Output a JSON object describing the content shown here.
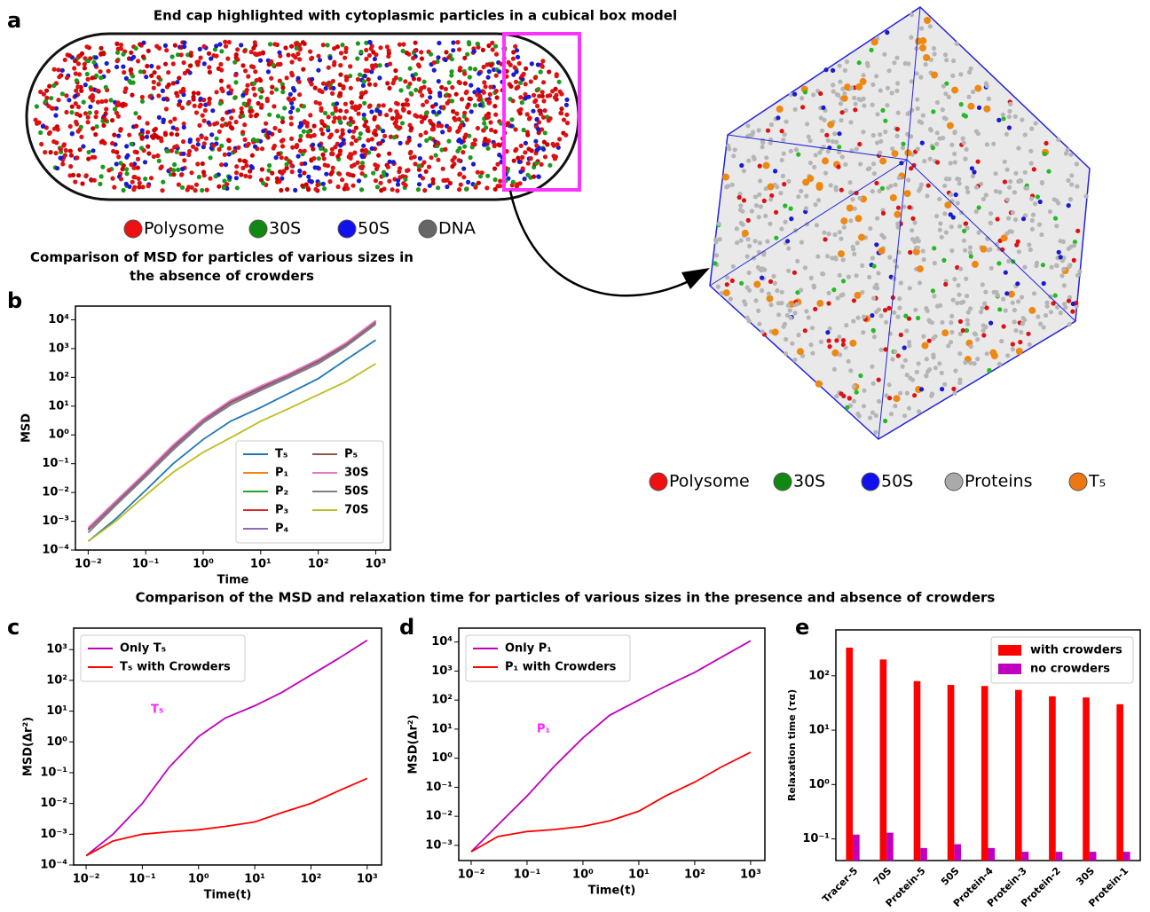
{
  "figure": {
    "title": "End cap highlighted with cytoplasmic particles in a cubical box model",
    "panel_labels": [
      "a",
      "b",
      "c",
      "d",
      "e"
    ],
    "cell_legend": [
      {
        "label": "Polysome",
        "color": "#ee1111"
      },
      {
        "label": "30S",
        "color": "#118811"
      },
      {
        "label": "50S",
        "color": "#1111ee"
      },
      {
        "label": "DNA",
        "color": "#666666"
      }
    ],
    "box_legend": [
      {
        "label": "Polysome",
        "color": "#ee1111"
      },
      {
        "label": "30S",
        "color": "#118811"
      },
      {
        "label": "50S",
        "color": "#1111ee"
      },
      {
        "label": "Proteins",
        "color": "#aaaaaa"
      },
      {
        "label": "T₅",
        "color": "#ee7711"
      }
    ],
    "section_title": "Comparison of the MSD and relaxation time for particles of various sizes in the presence and absence of crowders"
  },
  "chart_data": [
    {
      "type": "line",
      "title": "Comparison of MSD for particles of various sizes in the absence of crowders",
      "x_label": "Time",
      "y_label": "MSD",
      "log_x": true,
      "log_y": true,
      "legend": "lower right",
      "legend_columns": 2,
      "x": [
        0.01,
        0.03,
        0.1,
        0.3,
        1,
        3,
        10,
        30,
        100,
        300,
        1000
      ],
      "xlim": [
        0.006,
        1800
      ],
      "ylim": [
        0.0001,
        30000
      ],
      "xticks": [
        {
          "value": 0.01,
          "label": "10⁻²"
        },
        {
          "value": 0.1,
          "label": "10⁻¹"
        },
        {
          "value": 1,
          "label": "10⁰"
        },
        {
          "value": 10,
          "label": "10¹"
        },
        {
          "value": 100,
          "label": "10²"
        },
        {
          "value": 1000,
          "label": "10³"
        }
      ],
      "yticks": [
        {
          "value": 0.0001,
          "label": "10⁻⁴"
        },
        {
          "value": 0.001,
          "label": "10⁻³"
        },
        {
          "value": 0.01,
          "label": "10⁻²"
        },
        {
          "value": 0.1,
          "label": "10⁻¹"
        },
        {
          "value": 1,
          "label": "10⁰"
        },
        {
          "value": 10,
          "label": "10¹"
        },
        {
          "value": 100,
          "label": "10²"
        },
        {
          "value": 1000,
          "label": "10³"
        },
        {
          "value": 10000,
          "label": "10⁴"
        }
      ],
      "series": [
        {
          "name": "T₅",
          "color": "#1f77b4",
          "values": [
            0.0002,
            0.0012,
            0.012,
            0.1,
            0.7,
            3,
            9,
            27,
            90,
            400,
            2000
          ]
        },
        {
          "name": "P₁",
          "color": "#ff7f0e",
          "values": [
            0.0005,
            0.004,
            0.04,
            0.35,
            3,
            13,
            40,
            110,
            350,
            1300,
            8000
          ]
        },
        {
          "name": "P₂",
          "color": "#2ca02c",
          "values": [
            0.0005,
            0.004,
            0.04,
            0.35,
            3,
            13,
            40,
            110,
            350,
            1300,
            8000
          ]
        },
        {
          "name": "P₃",
          "color": "#d62728",
          "values": [
            0.0005,
            0.004,
            0.04,
            0.35,
            3,
            13,
            40,
            110,
            350,
            1300,
            8000
          ]
        },
        {
          "name": "P₄",
          "color": "#9467bd",
          "values": [
            0.0005,
            0.004,
            0.04,
            0.35,
            3,
            13,
            40,
            110,
            350,
            1300,
            8000
          ]
        },
        {
          "name": "P₅",
          "color": "#8c564b",
          "values": [
            0.00055,
            0.0045,
            0.045,
            0.4,
            3.3,
            14,
            44,
            120,
            380,
            1400,
            8800
          ]
        },
        {
          "name": "30S",
          "color": "#e377c2",
          "values": [
            0.0006,
            0.005,
            0.05,
            0.45,
            3.6,
            16,
            50,
            130,
            420,
            1550,
            9500
          ]
        },
        {
          "name": "50S",
          "color": "#7f7f7f",
          "values": [
            0.0004,
            0.0035,
            0.035,
            0.3,
            2.6,
            11,
            35,
            95,
            300,
            1150,
            7000
          ]
        },
        {
          "name": "70S",
          "color": "#bcbd22",
          "values": [
            0.0002,
            0.001,
            0.008,
            0.05,
            0.25,
            0.8,
            3,
            8,
            25,
            70,
            300
          ]
        }
      ]
    },
    {
      "type": "line",
      "x_label": "Time(t)",
      "y_label": "MSD(Δr²)",
      "log_x": true,
      "log_y": true,
      "legend": "upper left",
      "legend_columns": 1,
      "annotation": {
        "text": "T₅",
        "color": "#ff22ff"
      },
      "x": [
        0.01,
        0.03,
        0.1,
        0.3,
        1,
        3,
        10,
        30,
        100,
        300,
        1000
      ],
      "xlim": [
        0.006,
        1800
      ],
      "ylim": [
        0.0001,
        5000
      ],
      "xticks": [
        {
          "value": 0.01,
          "label": "10⁻²"
        },
        {
          "value": 0.1,
          "label": "10⁻¹"
        },
        {
          "value": 1,
          "label": "10⁰"
        },
        {
          "value": 10,
          "label": "10¹"
        },
        {
          "value": 100,
          "label": "10²"
        },
        {
          "value": 1000,
          "label": "10³"
        }
      ],
      "yticks": [
        {
          "value": 0.0001,
          "label": "10⁻⁴"
        },
        {
          "value": 0.001,
          "label": "10⁻³"
        },
        {
          "value": 0.01,
          "label": "10⁻²"
        },
        {
          "value": 0.1,
          "label": "10⁻¹"
        },
        {
          "value": 1,
          "label": "10⁰"
        },
        {
          "value": 10,
          "label": "10¹"
        },
        {
          "value": 100,
          "label": "10²"
        },
        {
          "value": 1000,
          "label": "10³"
        }
      ],
      "series": [
        {
          "name": "Only T₅",
          "color": "#bf00bf",
          "values": [
            0.0002,
            0.001,
            0.01,
            0.15,
            1.5,
            6,
            15,
            40,
            150,
            500,
            2000
          ]
        },
        {
          "name": "T₅ with Crowders",
          "color": "#ff0000",
          "values": [
            0.0002,
            0.0006,
            0.001,
            0.0012,
            0.0014,
            0.0018,
            0.0025,
            0.005,
            0.01,
            0.025,
            0.065
          ]
        }
      ]
    },
    {
      "type": "line",
      "x_label": "Time(t)",
      "y_label": "MSD(Δr²)",
      "log_x": true,
      "log_y": true,
      "legend": "upper left",
      "legend_columns": 1,
      "annotation": {
        "text": "P₁",
        "color": "#ff22ff"
      },
      "x": [
        0.01,
        0.03,
        0.1,
        0.3,
        1,
        3,
        10,
        30,
        100,
        300,
        1000
      ],
      "xlim": [
        0.006,
        1800
      ],
      "ylim": [
        0.0003,
        30000
      ],
      "xticks": [
        {
          "value": 0.01,
          "label": "10⁻²"
        },
        {
          "value": 0.1,
          "label": "10⁻¹"
        },
        {
          "value": 1,
          "label": "10⁰"
        },
        {
          "value": 10,
          "label": "10¹"
        },
        {
          "value": 100,
          "label": "10²"
        },
        {
          "value": 1000,
          "label": "10³"
        }
      ],
      "yticks": [
        {
          "value": 0.001,
          "label": "10⁻³"
        },
        {
          "value": 0.01,
          "label": "10⁻²"
        },
        {
          "value": 0.1,
          "label": "10⁻¹"
        },
        {
          "value": 1,
          "label": "10⁰"
        },
        {
          "value": 10,
          "label": "10¹"
        },
        {
          "value": 100,
          "label": "10²"
        },
        {
          "value": 1000,
          "label": "10³"
        },
        {
          "value": 10000,
          "label": "10⁴"
        }
      ],
      "series": [
        {
          "name": "Only P₁",
          "color": "#bf00bf",
          "values": [
            0.0006,
            0.005,
            0.05,
            0.5,
            5,
            30,
            100,
            300,
            900,
            3000,
            11000
          ]
        },
        {
          "name": "P₁ with Crowders",
          "color": "#ff0000",
          "values": [
            0.0006,
            0.002,
            0.003,
            0.0035,
            0.0045,
            0.007,
            0.015,
            0.05,
            0.15,
            0.5,
            1.6
          ]
        }
      ]
    },
    {
      "type": "bar",
      "y_label": "Relaxation time (τα)",
      "log_y": true,
      "legend": "upper right",
      "legend_columns": 1,
      "categories": [
        "Tracer-5",
        "70S",
        "Protein-5",
        "50S",
        "Protein-4",
        "Protein-3",
        "Protein-2",
        "30S",
        "Protein-1"
      ],
      "ylim": [
        0.04,
        700
      ],
      "yticks": [
        {
          "value": 0.1,
          "label": "10⁻¹"
        },
        {
          "value": 1,
          "label": "10⁰"
        },
        {
          "value": 10,
          "label": "10¹"
        },
        {
          "value": 100,
          "label": "10²"
        }
      ],
      "series": [
        {
          "name": "with crowders",
          "color": "#ff0000",
          "values": [
            330,
            200,
            80,
            68,
            65,
            55,
            42,
            40,
            30
          ]
        },
        {
          "name": "no crowders",
          "color": "#bf00bf",
          "values": [
            0.12,
            0.13,
            0.068,
            0.08,
            0.068,
            0.058,
            0.058,
            0.058,
            0.058
          ]
        }
      ]
    }
  ]
}
